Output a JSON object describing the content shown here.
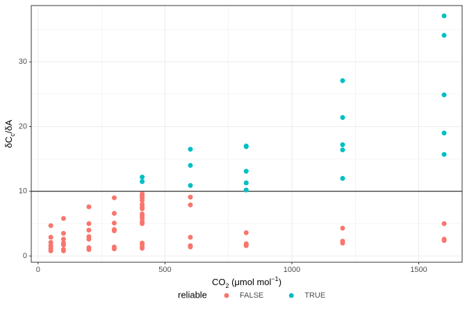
{
  "chart_data": {
    "type": "scatter",
    "xlabel": [
      {
        "text": "CO"
      },
      {
        "text": "2",
        "shift": "sub"
      },
      {
        "text": " (μmol mol"
      },
      {
        "text": "−1",
        "shift": "super"
      },
      {
        "text": ")"
      }
    ],
    "ylabel": [
      {
        "text": "δC"
      },
      {
        "text": "c",
        "shift": "sub"
      },
      {
        "text": "/δA"
      }
    ],
    "xlim": [
      -27,
      1671
    ],
    "ylim": [
      -0.96,
      38.7
    ],
    "xticks": [
      0,
      500,
      1000,
      1500
    ],
    "yticks": [
      0,
      10,
      20,
      30
    ],
    "grid": true,
    "hline": 10,
    "legend_title": "reliable",
    "legend_position": "bottom",
    "series": [
      {
        "name": "FALSE",
        "color": "#F8766D",
        "x": [
          50,
          50,
          50,
          50,
          50,
          50,
          100,
          100,
          100,
          100,
          100,
          100,
          100,
          200,
          200,
          200,
          200,
          200,
          200,
          200,
          300,
          300,
          300,
          300,
          300,
          300,
          300,
          410,
          410,
          410,
          410,
          410,
          410,
          410,
          410,
          410,
          410,
          410,
          410,
          410,
          410,
          410,
          410,
          600,
          600,
          600,
          600,
          600,
          820,
          820,
          820,
          820,
          1200,
          1200,
          1200,
          1600,
          1600,
          1600
        ],
        "values": [
          4.7,
          2.9,
          2.1,
          1.6,
          1.2,
          0.8,
          5.8,
          3.5,
          2.6,
          2.0,
          1.7,
          1.0,
          0.8,
          7.6,
          5.0,
          4.0,
          3.0,
          2.6,
          1.3,
          1.0,
          9.0,
          6.6,
          5.1,
          4.1,
          3.9,
          1.4,
          1.1,
          9.6,
          9.3,
          9.0,
          8.6,
          8.0,
          7.6,
          7.3,
          6.5,
          6.2,
          5.8,
          5.3,
          5.0,
          2.0,
          1.8,
          1.4,
          1.2,
          9.1,
          7.9,
          2.9,
          1.6,
          1.4,
          3.6,
          1.9,
          1.7,
          1.6,
          4.3,
          2.3,
          2.0,
          5.0,
          2.6,
          2.4
        ]
      },
      {
        "name": "TRUE",
        "color": "#00BFC4",
        "x": [
          410,
          410,
          600,
          600,
          600,
          820,
          820,
          820,
          820,
          820,
          1200,
          1200,
          1200,
          1200,
          1200,
          1600,
          1600,
          1600,
          1600,
          1600
        ],
        "values": [
          12.2,
          11.5,
          16.5,
          14.0,
          10.9,
          17.0,
          16.9,
          13.1,
          11.3,
          10.2,
          27.1,
          21.4,
          17.2,
          16.4,
          12.0,
          37.1,
          34.1,
          24.9,
          19.0,
          15.7
        ]
      }
    ]
  }
}
